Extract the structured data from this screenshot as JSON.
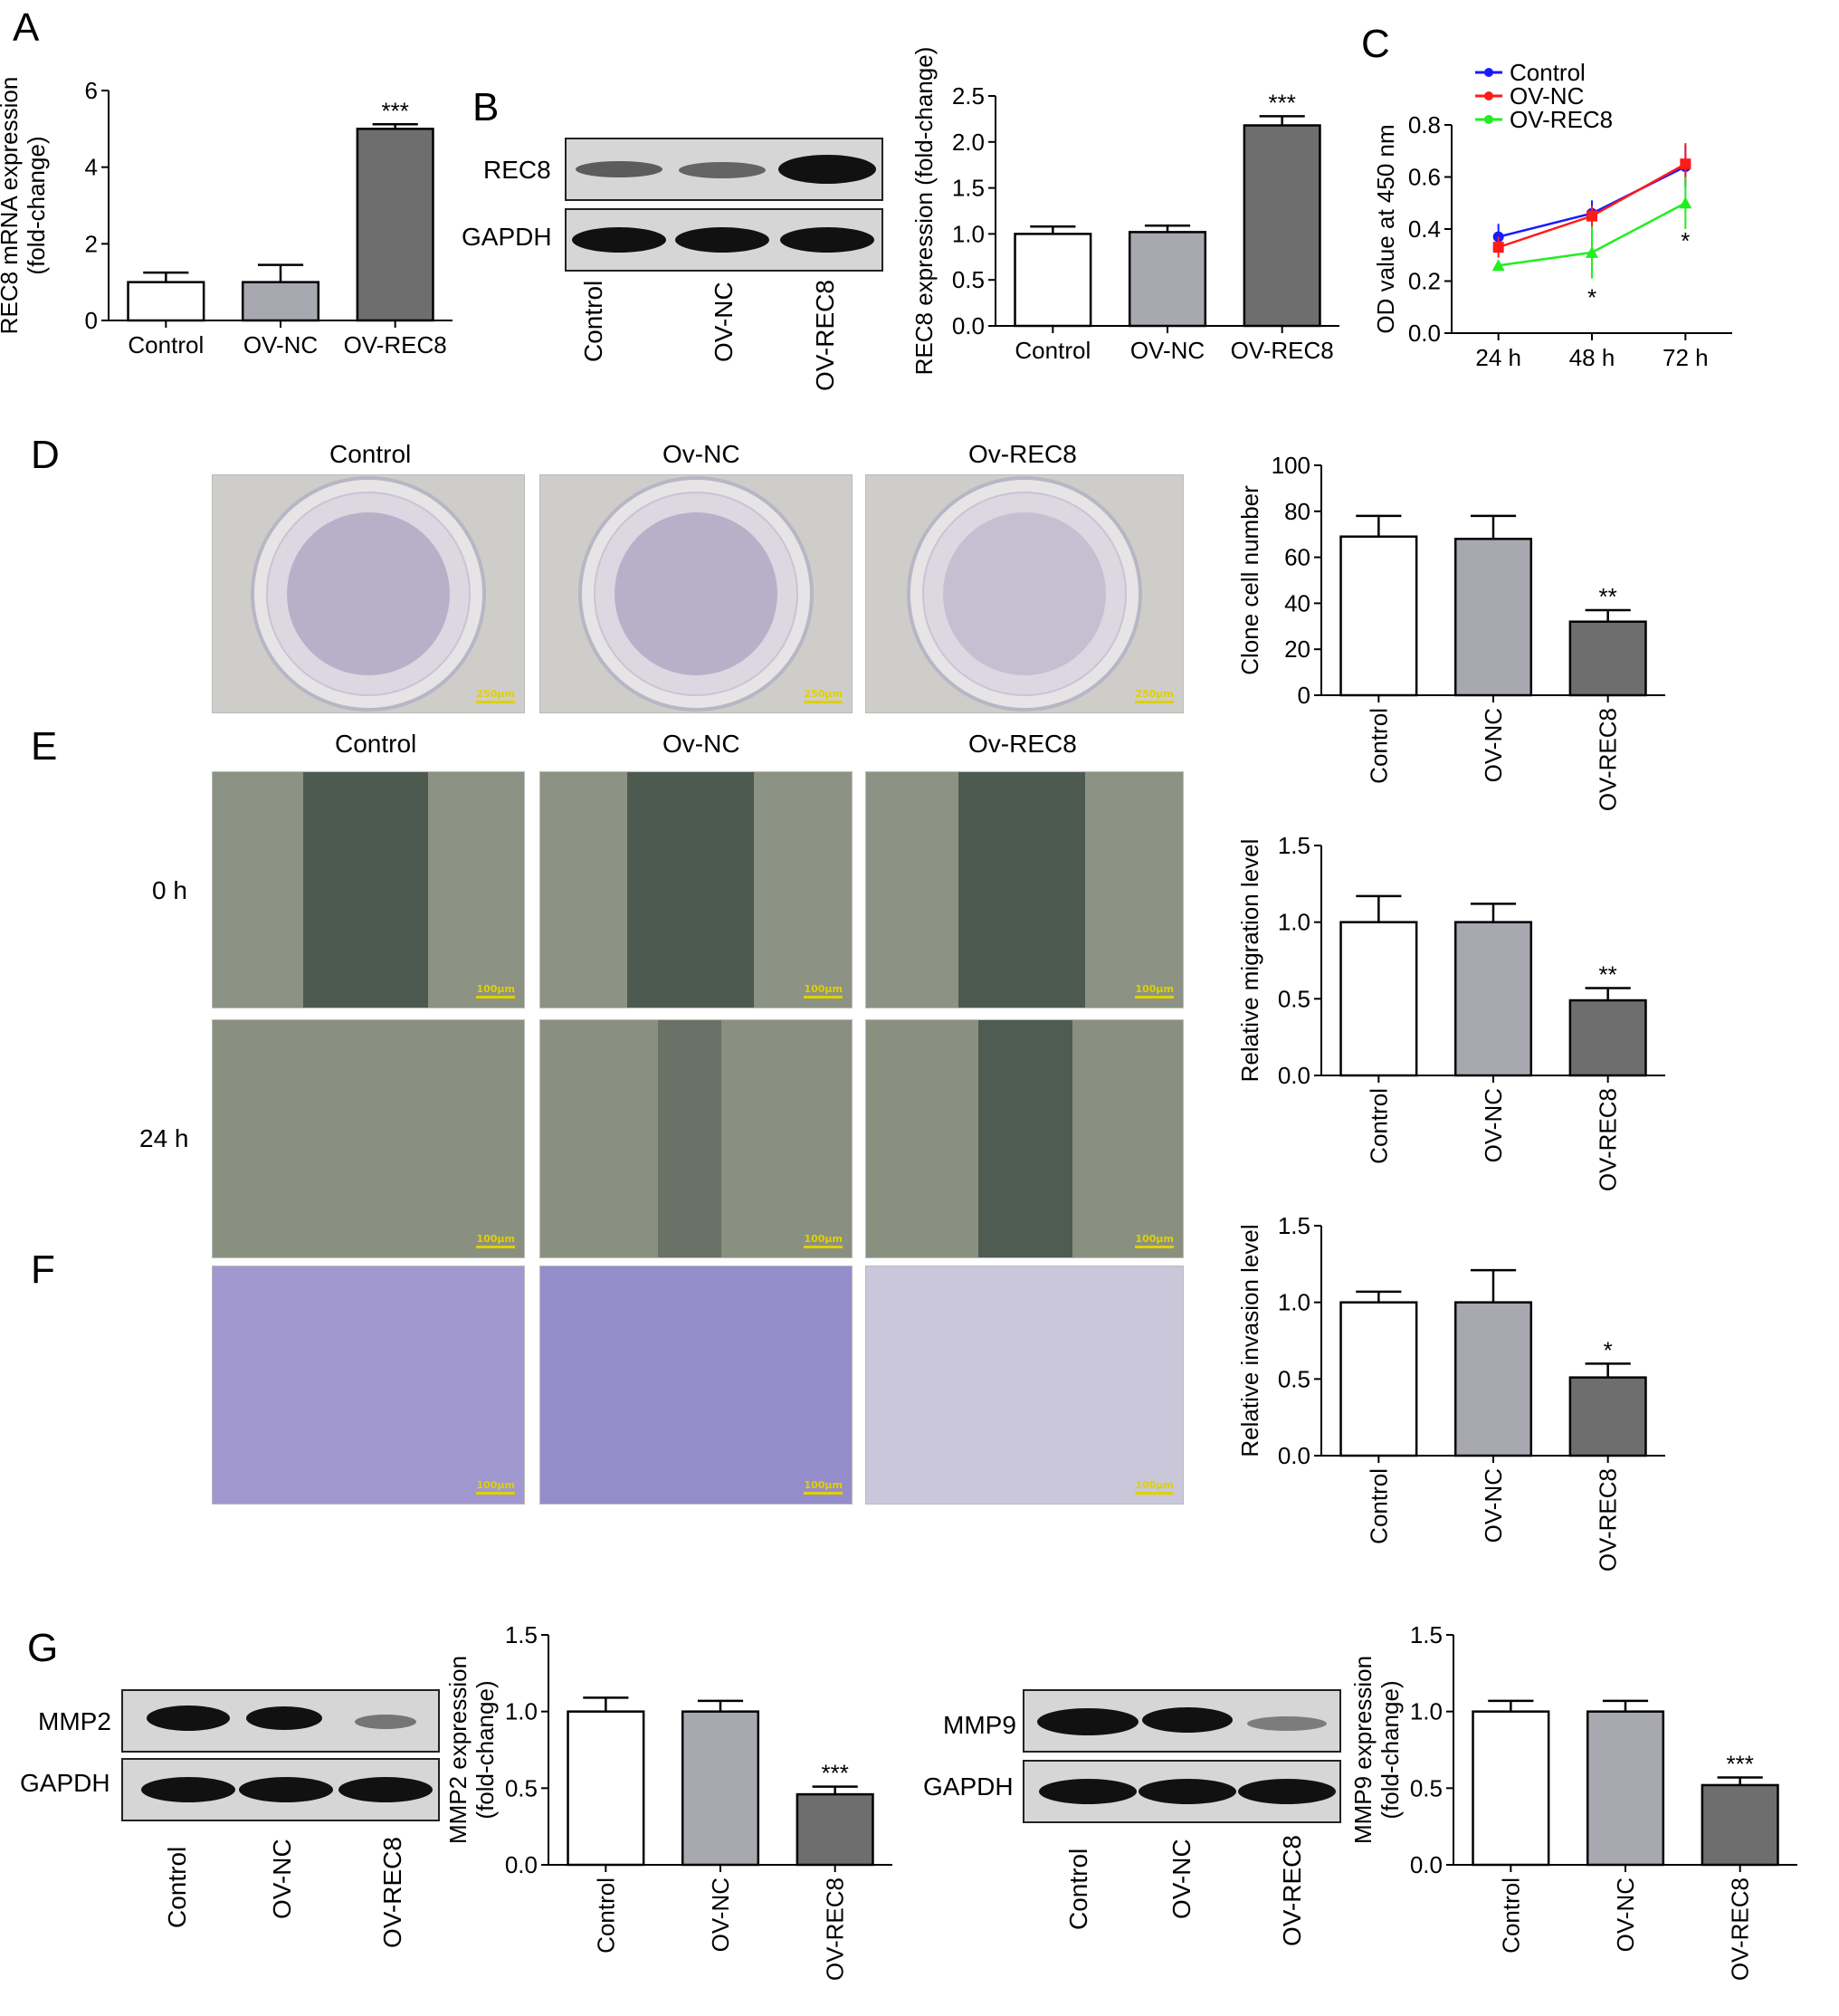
{
  "panels": {
    "A": "A",
    "B": "B",
    "C": "C",
    "D": "D",
    "E": "E",
    "F": "F",
    "G": "G"
  },
  "blots": {
    "B": {
      "rows": [
        "REC8",
        "GAPDH"
      ],
      "lanes": [
        "Control",
        "OV-NC",
        "OV-REC8"
      ]
    },
    "G_mmp2": {
      "rows": [
        "MMP2",
        "GAPDH"
      ],
      "lanes": [
        "Control",
        "OV-NC",
        "OV-REC8"
      ]
    },
    "G_mmp9": {
      "rows": [
        "MMP9",
        "GAPDH"
      ],
      "lanes": [
        "Control",
        "OV-NC",
        "OV-REC8"
      ]
    }
  },
  "images": {
    "D_titles": [
      "Control",
      "Ov-NC",
      "Ov-REC8"
    ],
    "E_titles": [
      "Control",
      "Ov-NC",
      "Ov-REC8"
    ],
    "E_rows": [
      "0 h",
      "24 h"
    ],
    "scale_D": "250μm",
    "scale_E": "100μm",
    "scale_F": "100μm"
  },
  "chart_data": [
    {
      "id": "A",
      "type": "bar",
      "categories": [
        "Control",
        "OV-NC",
        "OV-REC8"
      ],
      "values": [
        1.0,
        1.0,
        5.0
      ],
      "errors": [
        0.25,
        0.45,
        0.12
      ],
      "sig": [
        "",
        "",
        "***"
      ],
      "ylabel": [
        "REC8 mRNA expression",
        "(fold-change)"
      ],
      "ylim": [
        0,
        6
      ],
      "ticks": [
        "0",
        "2",
        "4",
        "6"
      ],
      "xrot": false
    },
    {
      "id": "B",
      "type": "bar",
      "categories": [
        "Control",
        "OV-NC",
        "OV-REC8"
      ],
      "values": [
        1.0,
        1.02,
        2.18
      ],
      "errors": [
        0.08,
        0.07,
        0.1
      ],
      "sig": [
        "",
        "",
        "***"
      ],
      "ylabel": [
        "REC8 expression (fold-change)"
      ],
      "ylim": [
        0,
        2.5
      ],
      "ticks": [
        "0.0",
        "0.5",
        "1.0",
        "1.5",
        "2.0",
        "2.5"
      ],
      "xrot": false
    },
    {
      "id": "C",
      "type": "line",
      "x": [
        "24 h",
        "48 h",
        "72 h"
      ],
      "ylabel": [
        "OD value at 450 nm"
      ],
      "ylim": [
        0,
        0.8
      ],
      "ticks": [
        "0.0",
        "0.2",
        "0.4",
        "0.6",
        "0.8"
      ],
      "legend": "top-left",
      "series": [
        {
          "name": "Control",
          "color": "#1a1aff",
          "marker": "circle",
          "values": [
            0.37,
            0.46,
            0.64
          ],
          "errors": [
            0.05,
            0.05,
            0.08
          ]
        },
        {
          "name": "OV-NC",
          "color": "#ff1a1a",
          "marker": "square",
          "values": [
            0.33,
            0.45,
            0.65
          ],
          "errors": [
            0.04,
            0.04,
            0.08
          ]
        },
        {
          "name": "OV-REC8",
          "color": "#22ee22",
          "marker": "triangle",
          "values": [
            0.26,
            0.31,
            0.5
          ],
          "errors": [
            0.02,
            0.1,
            0.1
          ]
        }
      ],
      "sig": [
        "",
        "*",
        "*"
      ]
    },
    {
      "id": "D",
      "type": "bar",
      "categories": [
        "Control",
        "OV-NC",
        "OV-REC8"
      ],
      "values": [
        69,
        68,
        32
      ],
      "errors": [
        9,
        10,
        5
      ],
      "sig": [
        "",
        "",
        "**"
      ],
      "ylabel": [
        "Clone cell number"
      ],
      "ylim": [
        0,
        100
      ],
      "ticks": [
        "0",
        "20",
        "40",
        "60",
        "80",
        "100"
      ],
      "xrot": true
    },
    {
      "id": "E",
      "type": "bar",
      "categories": [
        "Control",
        "OV-NC",
        "OV-REC8"
      ],
      "values": [
        1.0,
        1.0,
        0.49
      ],
      "errors": [
        0.17,
        0.12,
        0.08
      ],
      "sig": [
        "",
        "",
        "**"
      ],
      "ylabel": [
        "Relative migration level"
      ],
      "ylim": [
        0,
        1.5
      ],
      "ticks": [
        "0.0",
        "0.5",
        "1.0",
        "1.5"
      ],
      "xrot": true
    },
    {
      "id": "F",
      "type": "bar",
      "categories": [
        "Control",
        "OV-NC",
        "OV-REC8"
      ],
      "values": [
        1.0,
        1.0,
        0.51
      ],
      "errors": [
        0.07,
        0.21,
        0.09
      ],
      "sig": [
        "",
        "",
        "*"
      ],
      "ylabel": [
        "Relative invasion level"
      ],
      "ylim": [
        0,
        1.5
      ],
      "ticks": [
        "0.0",
        "0.5",
        "1.0",
        "1.5"
      ],
      "xrot": true
    },
    {
      "id": "G2",
      "type": "bar",
      "categories": [
        "Control",
        "OV-NC",
        "OV-REC8"
      ],
      "values": [
        1.0,
        1.0,
        0.46
      ],
      "errors": [
        0.09,
        0.07,
        0.05
      ],
      "sig": [
        "",
        "",
        "***"
      ],
      "ylabel": [
        "MMP2 expression",
        "(fold-change)"
      ],
      "ylim": [
        0,
        1.5
      ],
      "ticks": [
        "0.0",
        "0.5",
        "1.0",
        "1.5"
      ],
      "xrot": true
    },
    {
      "id": "G9",
      "type": "bar",
      "categories": [
        "Control",
        "OV-NC",
        "OV-REC8"
      ],
      "values": [
        1.0,
        1.0,
        0.52
      ],
      "errors": [
        0.07,
        0.07,
        0.05
      ],
      "sig": [
        "",
        "",
        "***"
      ],
      "ylabel": [
        "MMP9 expression",
        "(fold-change)"
      ],
      "ylim": [
        0,
        1.5
      ],
      "ticks": [
        "0.0",
        "0.5",
        "1.0",
        "1.5"
      ],
      "xrot": true
    }
  ],
  "colors": {
    "control": "#ffffff",
    "ovnc": "#a8a8b0",
    "ovrec8": "#6e6e6e",
    "blot_band": "#111111",
    "crystal_violet": "#5a46b8"
  }
}
